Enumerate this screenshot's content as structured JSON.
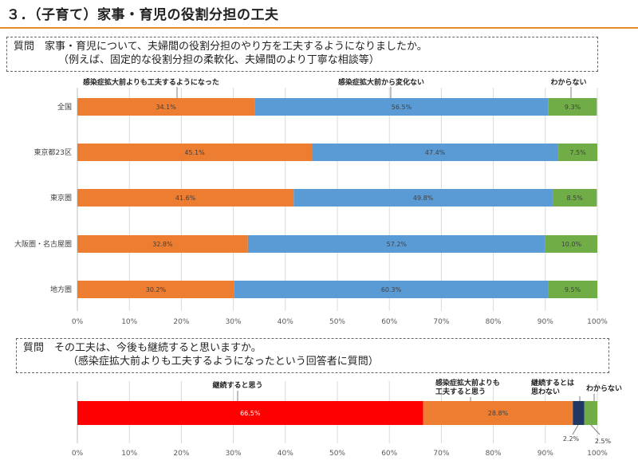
{
  "title": "３．（子育て）家事・育児の役割分担の工夫",
  "question1": {
    "line1": "質問　家事・育児について、夫婦間の役割分担のやり方を工夫するようになりましたか。",
    "line2": "（例えば、固定的な役割分担の柔軟化、夫婦間のより丁寧な相談等）"
  },
  "question2": {
    "line1": "質問　その工夫は、今後も継続すると思いますか。",
    "line2": "（感染症拡大前よりも工夫するようになったという回答者に質問）"
  },
  "chart_data": [
    {
      "type": "bar",
      "orientation": "horizontal",
      "stacked": true,
      "categories": [
        "全国",
        "東京都23区",
        "東京圏",
        "大阪圏・名古屋圏",
        "地方圏"
      ],
      "series": [
        {
          "name": "感染症拡大前よりも工夫するようになった",
          "color": "#ed7d31",
          "values": [
            34.1,
            45.1,
            41.6,
            32.8,
            30.2
          ],
          "labels": [
            "34.1%",
            "45.1%",
            "41.6%",
            "32.8%",
            "30.2%"
          ]
        },
        {
          "name": "感染症拡大前から変化ない",
          "color": "#5b9bd5",
          "values": [
            56.5,
            47.4,
            49.8,
            57.2,
            60.3
          ],
          "labels": [
            "56.5%",
            "47.4%",
            "49.8%",
            "57.2%",
            "60.3%"
          ]
        },
        {
          "name": "わからない",
          "color": "#70ad47",
          "values": [
            9.3,
            7.5,
            8.5,
            10.0,
            9.5
          ],
          "labels": [
            "9.3%",
            "7.5%",
            "8.5%",
            "10.0%",
            "9.5%"
          ]
        }
      ],
      "xlim": [
        0,
        100
      ],
      "xticks": [
        "0%",
        "10%",
        "20%",
        "30%",
        "40%",
        "50%",
        "60%",
        "70%",
        "80%",
        "90%",
        "100%"
      ],
      "grid": true
    },
    {
      "type": "bar",
      "orientation": "horizontal",
      "stacked": true,
      "categories": [
        ""
      ],
      "series": [
        {
          "name": "継続すると思う",
          "color": "#ff0000",
          "values": [
            66.5
          ],
          "labels": [
            "66.5%"
          ]
        },
        {
          "name": "感染症拡大前よりも\n工夫すると思う",
          "color": "#ed7d31",
          "values": [
            28.8
          ],
          "labels": [
            "28.8%"
          ]
        },
        {
          "name": "継続するとは\n思わない",
          "color": "#1f3864",
          "values": [
            2.2
          ],
          "labels": [
            "2.2%"
          ]
        },
        {
          "name": "わからない",
          "color": "#70ad47",
          "values": [
            2.5
          ],
          "labels": [
            "2.5%"
          ]
        }
      ],
      "xlim": [
        0,
        100
      ],
      "xticks": [
        "0%",
        "10%",
        "20%",
        "30%",
        "40%",
        "50%",
        "60%",
        "70%",
        "80%",
        "90%",
        "100%"
      ],
      "grid": true
    }
  ]
}
